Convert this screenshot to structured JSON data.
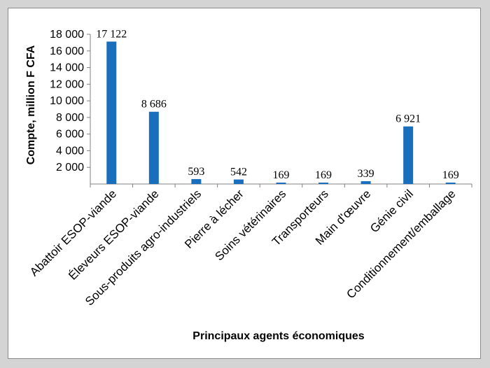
{
  "chart_data": {
    "type": "bar",
    "title": "",
    "xlabel": "Principaux agents économiques",
    "ylabel": "Compte, million F CFA",
    "ylim": [
      0,
      18000
    ],
    "yticks": [
      2000,
      4000,
      6000,
      8000,
      10000,
      12000,
      14000,
      16000,
      18000
    ],
    "ytick_labels": [
      "2 000",
      "4 000",
      "6 000",
      "8 000",
      "10 000",
      "12 000",
      "14 000",
      "16 000",
      "18 000"
    ],
    "categories": [
      "Abattoir ESOP-viande",
      "Éleveurs ESOP-viande",
      "Sous-produits agro-industriels",
      "Pierre à lécher",
      "Soins vétérinaires",
      "Transporteurs",
      "Main d'œuvre",
      "Génie civil",
      "Conditionnement/emballage"
    ],
    "values": [
      17122,
      8686,
      593,
      542,
      169,
      169,
      339,
      6921,
      169
    ],
    "value_labels": [
      "17 122",
      "8 686",
      "593",
      "542",
      "169",
      "169",
      "339",
      "6 921",
      "169"
    ],
    "grid": false,
    "legend": "none",
    "bar_color": "#1a6fbd"
  }
}
